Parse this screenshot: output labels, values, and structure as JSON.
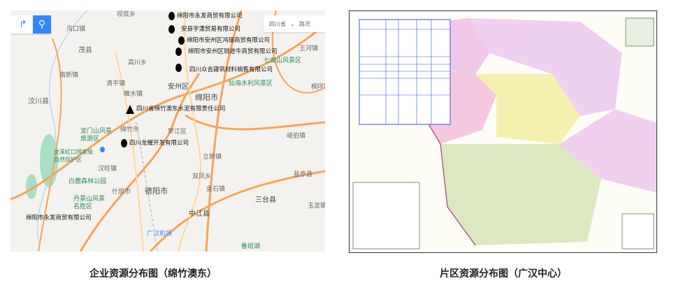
{
  "left_map": {
    "search_icon": "search-icon",
    "route_icon": "route-icon",
    "province_select": "四川省",
    "traffic_label": "路况",
    "companies": [
      {
        "name": "绵阳市永发商贸有限公司",
        "marker": "circle"
      },
      {
        "name": "安县宇潇贸易有限公司",
        "marker": "circle"
      },
      {
        "name": "绵阳市安州区鸿瑞商贸有限公司",
        "marker": "circle"
      },
      {
        "name": "绵阳市安州区锐途牛商贸有限公司",
        "marker": "circle"
      },
      {
        "name": "四川众吉建筑材料销售有限公司",
        "marker": "circle"
      },
      {
        "name": "四川省绵竹澳东水泥有限责任公司",
        "marker": "triangle"
      },
      {
        "name": "四川龙耀开发有限公司",
        "marker": "circle"
      },
      {
        "name": "绵阳市永发商贸有限公司",
        "marker": "none"
      }
    ],
    "places": [
      "坝底乡",
      "沟口镇",
      "茂县",
      "高川乡",
      "南新镇",
      "清平镇",
      "汶川县",
      "睢水镇",
      "安州区",
      "绵阳市",
      "七曲山风景区",
      "王河镇",
      "仙海水利风景区",
      "桐坪镇",
      "龙门山风景旅游区",
      "龙溪虹口国家级自然保护区",
      "汉旺镇",
      "白鹿森林公园",
      "丹景山风景名胜区",
      "什邡市",
      "德阳市",
      "立新镇",
      "双凤乡",
      "金石镇",
      "中江县",
      "三台县",
      "盐亭县",
      "玉龙镇",
      "罗江区",
      "广汉机场",
      "鲁班湖",
      "岐伯镇",
      "绵竹市"
    ]
  },
  "right_map": {
    "description_table_present": true
  },
  "captions": {
    "left": "企业资源分布图（绵竹澳东）",
    "right": "片区资源分布图（广汉中心）"
  },
  "colors": {
    "accent": "#3385ff",
    "road": "#f6a55a",
    "park": "#a8e0c4"
  }
}
